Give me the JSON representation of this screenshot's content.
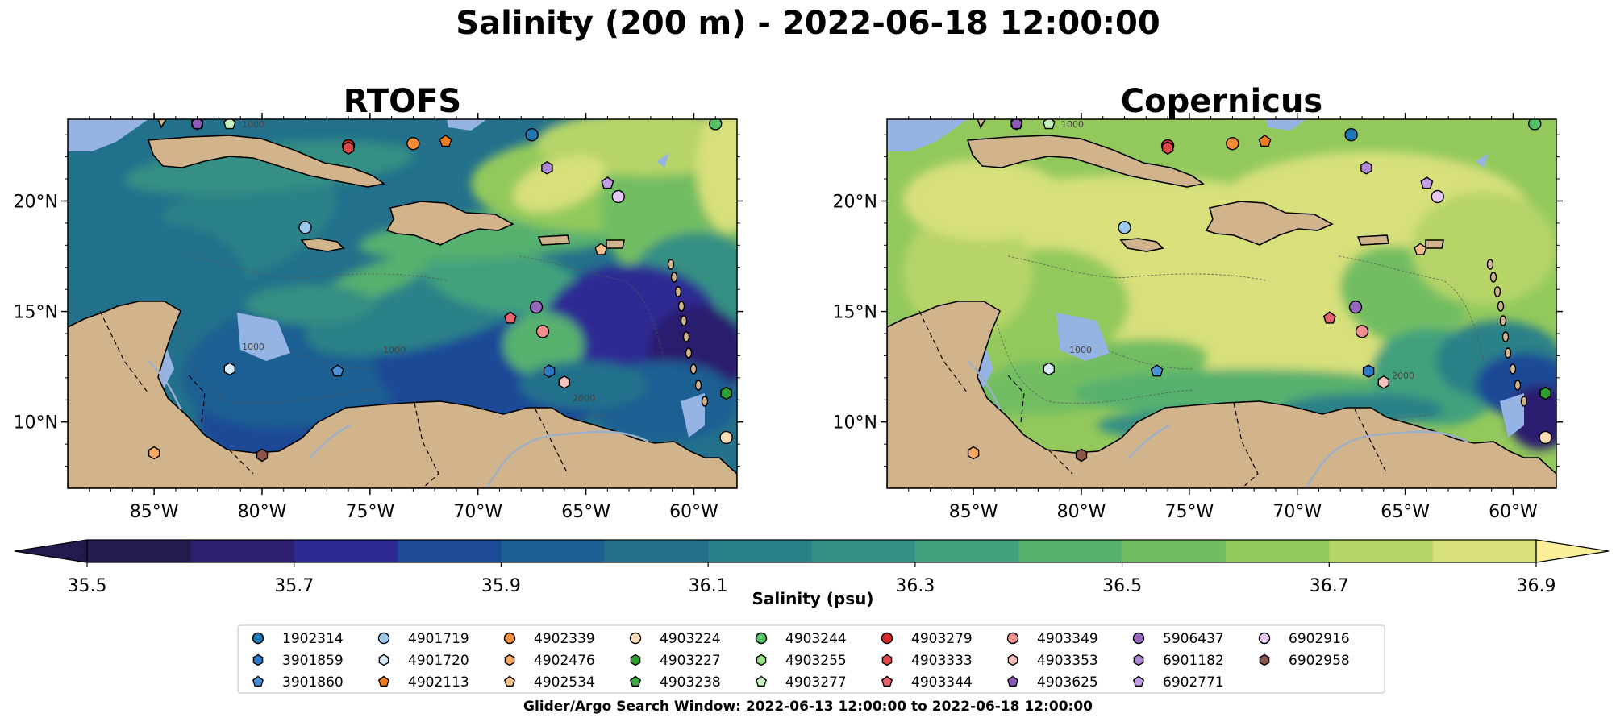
{
  "title": "Salinity (200 m) - 2022-06-18 12:00:00",
  "colorbar": {
    "label": "Salinity (psu)",
    "ticks": [
      "35.5",
      "35.7",
      "35.9",
      "36.1",
      "36.3",
      "36.5",
      "36.7",
      "36.9"
    ],
    "min": 35.5,
    "max": 36.9,
    "step": 0.1,
    "colors": [
      "#2c1f6e",
      "#2d2b93",
      "#1d4a96",
      "#1d5f93",
      "#23718c",
      "#2a8187",
      "#348f83",
      "#43a17d",
      "#56b06e",
      "#72bd62",
      "#93c95c",
      "#b6d468",
      "#d7e07a"
    ],
    "under_color": "#231a4e",
    "over_color": "#fbee98"
  },
  "chart_data": [
    {
      "type": "heatmap",
      "title": "RTOFS",
      "variable": "Salinity at 200 m",
      "units": "psu",
      "lon_range": [
        -89,
        -58
      ],
      "lat_range": [
        7,
        23.7
      ],
      "x_ticks": [
        "85°W",
        "80°W",
        "75°W",
        "70°W",
        "65°W",
        "60°W"
      ],
      "y_ticks": [
        "10°N",
        "15°N",
        "20°N"
      ],
      "contour_labels": [
        "1000",
        "1000",
        "1000",
        "2000"
      ]
    },
    {
      "type": "heatmap",
      "title": "Copernicus",
      "variable": "Salinity at 200 m",
      "units": "psu",
      "lon_range": [
        -89,
        -58
      ],
      "lat_range": [
        7,
        23.7
      ],
      "x_ticks": [
        "85°W",
        "80°W",
        "75°W",
        "70°W",
        "65°W",
        "60°W"
      ],
      "y_ticks": [
        "10°N",
        "15°N",
        "20°N"
      ],
      "contour_labels": [
        "1000",
        "1000",
        "2000"
      ]
    }
  ],
  "platforms": [
    {
      "id": "1902314",
      "lon": -67.5,
      "lat": 23.0,
      "color": "#1f77b4",
      "marker": "circle"
    },
    {
      "id": "3901859",
      "lon": -66.7,
      "lat": 12.3,
      "color": "#2d7bc4",
      "marker": "hexagon"
    },
    {
      "id": "3901860",
      "lon": -76.5,
      "lat": 12.3,
      "color": "#4b93d6",
      "marker": "pentagon"
    },
    {
      "id": "4901719",
      "lon": -78.0,
      "lat": 18.8,
      "color": "#9ec8eb",
      "marker": "circle"
    },
    {
      "id": "4901720",
      "lon": -81.5,
      "lat": 12.4,
      "color": "#d6ebfa",
      "marker": "hexagon"
    },
    {
      "id": "4902113",
      "lon": -71.5,
      "lat": 22.7,
      "color": "#f07d1e",
      "marker": "pentagon"
    },
    {
      "id": "4902339",
      "lon": -73.0,
      "lat": 22.6,
      "color": "#f28c3a",
      "marker": "circle"
    },
    {
      "id": "4902476",
      "lon": -85.0,
      "lat": 8.6,
      "color": "#f8a860",
      "marker": "hexagon"
    },
    {
      "id": "4902534",
      "lon": -64.3,
      "lat": 17.8,
      "color": "#f7c08a",
      "marker": "pentagon"
    },
    {
      "id": "4903224",
      "lon": -58.5,
      "lat": 9.3,
      "color": "#fcdcb8",
      "marker": "circle"
    },
    {
      "id": "4903227",
      "lon": -58.5,
      "lat": 11.3,
      "color": "#2ca02c",
      "marker": "hexagon"
    },
    {
      "id": "4903238",
      "lon": -59.0,
      "lat": 23.5,
      "color": "#39a845",
      "marker": "pentagon"
    },
    {
      "id": "4903244",
      "lon": -59.0,
      "lat": 23.5,
      "color": "#55c065",
      "marker": "circle"
    },
    {
      "id": "4903255",
      "lon": -83.0,
      "lat": 23.5,
      "color": "#98df8a",
      "marker": "hexagon"
    },
    {
      "id": "4903277",
      "lon": -81.5,
      "lat": 23.5,
      "color": "#c7f0c0",
      "marker": "pentagon"
    },
    {
      "id": "4903279",
      "lon": -76.0,
      "lat": 22.5,
      "color": "#d62728",
      "marker": "circle"
    },
    {
      "id": "4903333",
      "lon": -76.0,
      "lat": 22.4,
      "color": "#de4a4a",
      "marker": "hexagon"
    },
    {
      "id": "4903344",
      "lon": -68.5,
      "lat": 14.7,
      "color": "#e8636b",
      "marker": "pentagon"
    },
    {
      "id": "4903349",
      "lon": -67.0,
      "lat": 14.1,
      "color": "#f0908e",
      "marker": "circle"
    },
    {
      "id": "4903353",
      "lon": -66.0,
      "lat": 11.8,
      "color": "#f6c2be",
      "marker": "hexagon"
    },
    {
      "id": "4903625",
      "lon": -83.0,
      "lat": 23.5,
      "color": "#8a5cb8",
      "marker": "pentagon"
    },
    {
      "id": "5906437",
      "lon": -67.3,
      "lat": 15.2,
      "color": "#9467bd",
      "marker": "circle"
    },
    {
      "id": "6901182",
      "lon": -66.8,
      "lat": 21.5,
      "color": "#b188d6",
      "marker": "hexagon"
    },
    {
      "id": "6902771",
      "lon": -64.0,
      "lat": 20.8,
      "color": "#c39ee6",
      "marker": "pentagon"
    },
    {
      "id": "6902916",
      "lon": -63.5,
      "lat": 20.2,
      "color": "#e6c8f7",
      "marker": "circle"
    },
    {
      "id": "6902958",
      "lon": -80.0,
      "lat": 8.5,
      "color": "#8c564b",
      "marker": "hexagon"
    }
  ],
  "legend": {
    "placement": "bottom-center",
    "columns": 9
  },
  "footer": "Glider/Argo Search Window: 2022-06-13 12:00:00 to 2022-06-18 12:00:00"
}
